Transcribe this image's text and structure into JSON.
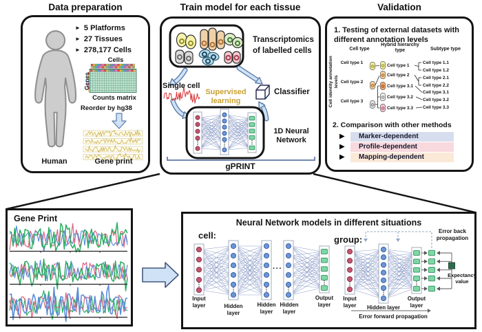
{
  "data_prep": {
    "title": "Data preparation",
    "bullet_icon": "►",
    "bullets": [
      "5 Platforms",
      "27 Tissues",
      "278,177 Cells"
    ],
    "cells_label": "Cells",
    "genes_label": "Genes",
    "counts_matrix_label": "Counts matrix",
    "reorder_label": "Reorder by hg38",
    "human_label": "Human",
    "gene_print_label": "Gene print"
  },
  "train": {
    "title": "Train model for each tissue",
    "transcriptomics_label": "Transcriptomics of labelled cells",
    "single_cell_label": "Single cell",
    "supervised_label": "Supervised learning",
    "classifier_label": "Classifier",
    "nn_label": "1D Neural Network",
    "gprint_label": "gPRINT"
  },
  "validation": {
    "title": "Validation",
    "section1_title": "1. Testing of external datasets with different annotation levels",
    "header_cell_type": "Cell type",
    "header_hybrid": "Hybrid hierarchy type",
    "header_subtype": "Subtype type",
    "axis_label": "Cell identity annotation levels",
    "left_items": [
      "Cell type 1",
      "Cell type 2",
      "Cell type 3"
    ],
    "hybrid_items": [
      "Cell type 1",
      "Cell type 2",
      "Cell type 3.1",
      "Cell type 3.2",
      "Cell type 3.3"
    ],
    "subtype_items": [
      "Cell type 1.1",
      "Cell type 1.2",
      "Cell type 2.1",
      "Cell type 2.2",
      "Cell type 3.1",
      "Cell type 3.2",
      "Cell type 3.3"
    ],
    "section2_title": "2. Comparison with other methods",
    "method_bullet": "▶",
    "methods": [
      {
        "label": "Marker-dependent",
        "bg": "#d6deee"
      },
      {
        "label": "Profile-dependent",
        "bg": "#f8d9de"
      },
      {
        "label": "Mapping-dependent",
        "bg": "#fbe9d8"
      }
    ]
  },
  "gene_print": {
    "title": "Gene Print"
  },
  "nn_models": {
    "title": "Neural Network models in different situations",
    "cell_label": "cell:",
    "group_label": "group:",
    "dots": "···",
    "cell_layer_labels": [
      "Input layer",
      "Hidden layer",
      "Hidden layer",
      "Hidden layer",
      "Output layer"
    ],
    "group_layer_labels": [
      "Input layer",
      "Hidden layer",
      "Output layer"
    ],
    "error_back_label": "Error back propagation",
    "error_forward_label": "Error forward propagation",
    "expectancy_label": "Expectancy value"
  },
  "colors": {
    "node_red": "#c65570",
    "node_red_border": "#7c2e44",
    "node_blue": "#6b96d8",
    "node_blue_border": "#33589c",
    "node_green": "#7fd7a4",
    "node_green_border": "#2f8f60",
    "connection": "#8b9cc7",
    "expectancy_green": "#2e6b4d",
    "arrow_fill": "#cfe2f6",
    "arrow_stroke": "#5b7ca8",
    "bracket_blue": "#7388ae",
    "supervised_text": "#c8a131",
    "wave_green": "#27ae60",
    "wave_pink": "#e0607e",
    "wave_blue": "#5b8dd9",
    "wave_yellow": "#cdb04a",
    "single_cell_red": "#d63031"
  }
}
